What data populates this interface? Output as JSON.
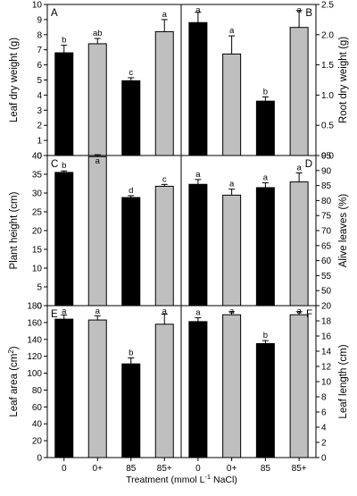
{
  "chart_data": [
    {
      "type": "bar",
      "panel": "A",
      "axis_side": "left",
      "ylabel": "Leaf dry weight (g)",
      "ylim": [
        0,
        10
      ],
      "yticks": [
        0,
        1,
        2,
        3,
        4,
        5,
        6,
        7,
        8,
        9,
        10
      ],
      "categories": [
        "0",
        "0+",
        "85",
        "85+"
      ],
      "values": [
        6.8,
        7.4,
        4.95,
        8.2
      ],
      "errors": [
        0.5,
        0.35,
        0.2,
        0.8
      ],
      "letters": [
        "b",
        "ab",
        "c",
        "a"
      ],
      "colors": [
        "#000000",
        "#bfbfbf",
        "#000000",
        "#bfbfbf"
      ]
    },
    {
      "type": "bar",
      "panel": "B",
      "axis_side": "right",
      "ylabel": "Root dry weight (g)",
      "ylim": [
        0,
        2.5
      ],
      "yticks": [
        "0.0",
        "0.5",
        "1.0",
        "1.5",
        "2.0",
        "2.5"
      ],
      "categories": [
        "0",
        "0+",
        "85",
        "85+"
      ],
      "values": [
        2.2,
        1.68,
        0.9,
        2.12
      ],
      "errors": [
        0.17,
        0.3,
        0.07,
        0.28
      ],
      "letters": [
        "a",
        "a",
        "b",
        "a"
      ],
      "colors": [
        "#000000",
        "#bfbfbf",
        "#000000",
        "#bfbfbf"
      ]
    },
    {
      "type": "bar",
      "panel": "C",
      "axis_side": "left",
      "ylabel": "Plant height (cm)",
      "ylim": [
        0,
        40
      ],
      "yticks": [
        0,
        5,
        10,
        15,
        20,
        25,
        30,
        35,
        40
      ],
      "categories": [
        "0",
        "0+",
        "85",
        "85+"
      ],
      "values": [
        35.5,
        39.7,
        28.8,
        31.8
      ],
      "errors": [
        0.4,
        0.5,
        0.5,
        0.5
      ],
      "letters": [
        "b",
        "a",
        "d",
        "c"
      ],
      "colors": [
        "#000000",
        "#bfbfbf",
        "#000000",
        "#bfbfbf"
      ]
    },
    {
      "type": "bar",
      "panel": "D",
      "axis_side": "right",
      "ylabel": "Alive leaves (%)",
      "ylim": [
        45,
        95
      ],
      "yticks": [
        50,
        55,
        60,
        65,
        70,
        75,
        80,
        85,
        90,
        95
      ],
      "categories": [
        "0",
        "0+",
        "85",
        "85+"
      ],
      "values": [
        85.4,
        81.8,
        84.3,
        86.2
      ],
      "errors": [
        1.6,
        2.0,
        1.6,
        3.0
      ],
      "letters": [
        "a",
        "a",
        "a",
        "a"
      ],
      "colors": [
        "#000000",
        "#bfbfbf",
        "#000000",
        "#bfbfbf"
      ]
    },
    {
      "type": "bar",
      "panel": "E",
      "axis_side": "left",
      "ylabel": "Leaf area (cm",
      "ylabel_sup": "2",
      "ylabel_tail": ")",
      "ylim": [
        0,
        180
      ],
      "yticks": [
        0,
        20,
        40,
        60,
        80,
        100,
        120,
        140,
        160,
        180
      ],
      "categories": [
        "0",
        "0+",
        "85",
        "85+"
      ],
      "values": [
        164,
        163,
        111,
        158
      ],
      "errors": [
        5,
        5,
        7,
        12
      ],
      "letters": [
        "a",
        "a",
        "b",
        "a"
      ],
      "colors": [
        "#000000",
        "#bfbfbf",
        "#000000",
        "#bfbfbf"
      ]
    },
    {
      "type": "bar",
      "panel": "F",
      "axis_side": "right",
      "ylabel": "Leaf length (cm)",
      "ylim": [
        0,
        20
      ],
      "yticks": [
        0,
        2,
        4,
        6,
        8,
        10,
        12,
        14,
        16,
        18,
        20
      ],
      "categories": [
        "0",
        "0+",
        "85",
        "85+"
      ],
      "values": [
        17.9,
        18.8,
        15.0,
        18.8
      ],
      "errors": [
        0.5,
        0.4,
        0.4,
        0.4
      ],
      "letters": [
        "a",
        "a",
        "b",
        "a"
      ],
      "colors": [
        "#000000",
        "#bfbfbf",
        "#000000",
        "#bfbfbf"
      ]
    }
  ],
  "xaxis": {
    "label_parts": [
      "Treatment (mmol L",
      "-1",
      " NaCl)"
    ]
  }
}
